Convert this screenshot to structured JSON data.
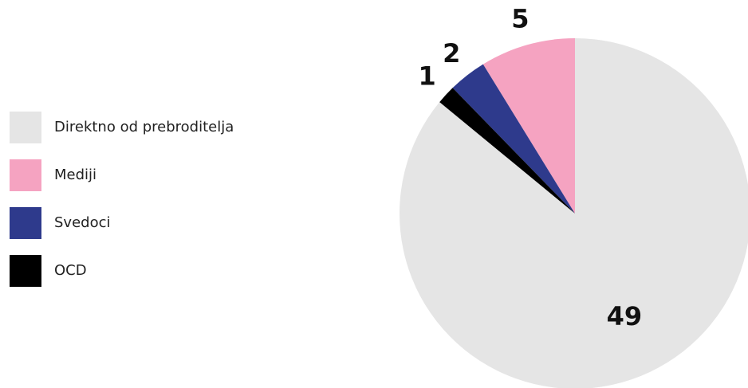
{
  "chart_data": {
    "type": "pie",
    "categories": [
      "Direktno od prebroditelja",
      "Mediji",
      "Svedoci",
      "OCD"
    ],
    "values": [
      49,
      5,
      2,
      1
    ],
    "colors": [
      "#e5e5e5",
      "#f5a3c1",
      "#2e3a8c",
      "#000000"
    ]
  }
}
